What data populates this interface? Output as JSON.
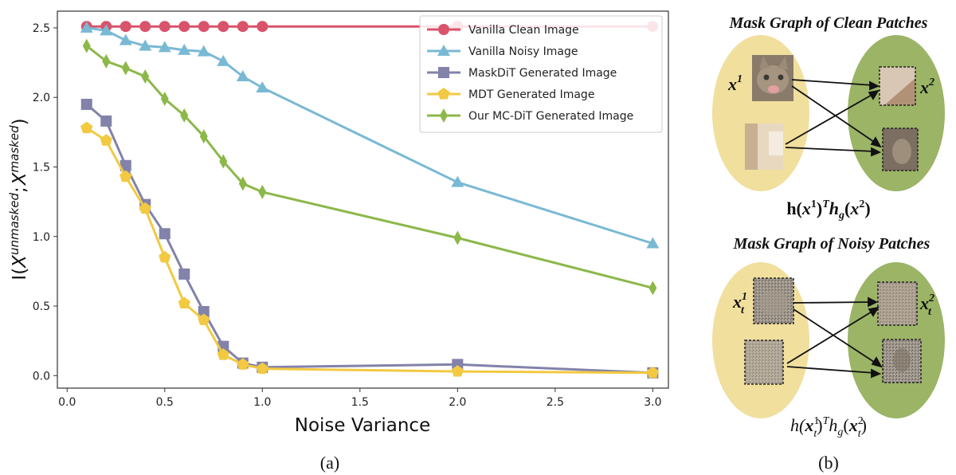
{
  "chart_data": {
    "type": "line",
    "xlabel": "Noise Variance",
    "ylabel": "I(X^unmasked ; X^masked)",
    "ylabel_base": "I(",
    "ylabel_x1": "X",
    "ylabel_sup1": "unmasked",
    "ylabel_sep": ";",
    "ylabel_x2": "X",
    "ylabel_sup2": "masked",
    "ylabel_close": ")",
    "xlim": [
      -0.05,
      3.08
    ],
    "ylim": [
      -0.09,
      2.62
    ],
    "xticks": [
      "0.0",
      "0.5",
      "1.0",
      "1.5",
      "2.0",
      "2.5",
      "3.0"
    ],
    "yticks": [
      "0.0",
      "0.5",
      "1.0",
      "1.5",
      "2.0",
      "2.5"
    ],
    "grid": false,
    "legend_position": "top-right",
    "series": [
      {
        "name": "Vanilla Clean Image",
        "color": "#d9536b",
        "marker": "circle",
        "x": [
          0.1,
          0.2,
          0.3,
          0.4,
          0.5,
          0.6,
          0.7,
          0.8,
          0.9,
          1.0,
          2.0,
          3.0
        ],
        "y": [
          2.51,
          2.51,
          2.51,
          2.51,
          2.51,
          2.51,
          2.51,
          2.51,
          2.51,
          2.51,
          2.51,
          2.51
        ]
      },
      {
        "name": "Vanilla Noisy Image",
        "color": "#7ab9d4",
        "marker": "triangle",
        "x": [
          0.1,
          0.2,
          0.3,
          0.4,
          0.5,
          0.6,
          0.7,
          0.8,
          0.9,
          1.0,
          2.0,
          3.0
        ],
        "y": [
          2.5,
          2.48,
          2.41,
          2.37,
          2.36,
          2.34,
          2.33,
          2.26,
          2.15,
          2.07,
          1.39,
          0.95
        ]
      },
      {
        "name": "MaskDiT Generated Image",
        "color": "#8282aa",
        "marker": "square",
        "x": [
          0.1,
          0.2,
          0.3,
          0.4,
          0.5,
          0.6,
          0.7,
          0.8,
          0.9,
          1.0,
          2.0,
          3.0
        ],
        "y": [
          1.95,
          1.83,
          1.51,
          1.23,
          1.02,
          0.73,
          0.46,
          0.21,
          0.09,
          0.06,
          0.08,
          0.02
        ]
      },
      {
        "name": "MDT Generated Image",
        "color": "#f2c941",
        "marker": "pentagon",
        "x": [
          0.1,
          0.2,
          0.3,
          0.4,
          0.5,
          0.6,
          0.7,
          0.8,
          0.9,
          1.0,
          2.0,
          3.0
        ],
        "y": [
          1.78,
          1.69,
          1.43,
          1.2,
          0.85,
          0.52,
          0.4,
          0.15,
          0.08,
          0.05,
          0.03,
          0.02
        ]
      },
      {
        "name": "Our MC-DiT Generated Image",
        "color": "#8cb84a",
        "marker": "thin_diamond",
        "x": [
          0.1,
          0.2,
          0.3,
          0.4,
          0.5,
          0.6,
          0.7,
          0.8,
          0.9,
          1.0,
          2.0,
          3.0
        ],
        "y": [
          2.37,
          2.26,
          2.21,
          2.15,
          1.99,
          1.87,
          1.72,
          1.54,
          1.38,
          1.32,
          0.99,
          0.63
        ]
      }
    ]
  },
  "captions": {
    "left": "(a)",
    "right": "(b)"
  },
  "diagram": {
    "colors": {
      "left_ellipse": "#f1df9e",
      "right_ellipse": "#9bb466"
    },
    "clean": {
      "title": "Mask Graph of Clean Patches",
      "left_var": "x",
      "left_sup": "1",
      "right_var": "x",
      "right_sup": "2",
      "formula": {
        "h1": "h(",
        "x1": "x",
        "x1_sup": "1",
        "mid": ")",
        "T": "T",
        "h2": "h",
        "g": "g",
        "open2": "(",
        "x2": "x",
        "x2_sup": "2",
        "close": ")"
      }
    },
    "noisy": {
      "title": "Mask Graph of Noisy Patches",
      "left_var": "x",
      "left_sub": "t",
      "left_sup": "1",
      "right_var": "x",
      "right_sub": "t",
      "right_sup": "2",
      "formula": {
        "h1": "h(",
        "x1": "x",
        "x1_sub": "t",
        "x1_sup": "1",
        "mid": ")",
        "T": "T",
        "h2": "h",
        "g": "g",
        "open2": "(",
        "x2": "x",
        "x2_sub": "t",
        "x2_sup": "2",
        "close": ")"
      }
    }
  }
}
